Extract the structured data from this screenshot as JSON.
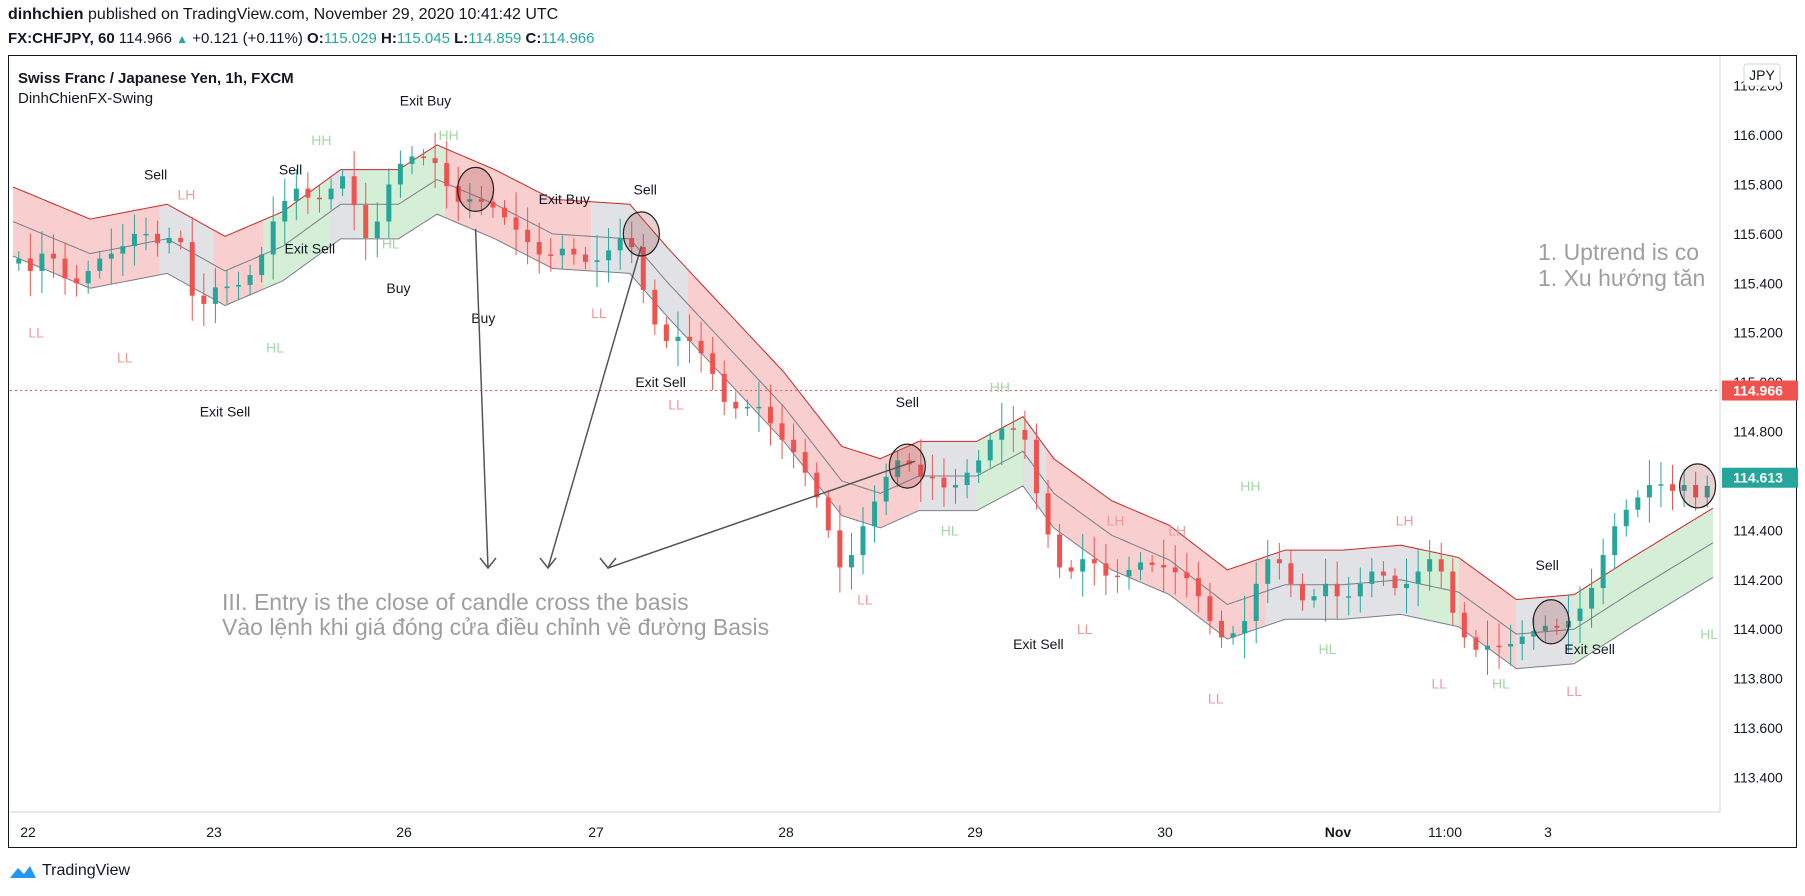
{
  "header": {
    "author": "dinhchien",
    "published": "published on TradingView.com, November 29, 2020 10:41:42 UTC",
    "symbol": "FX:CHFJPY, 60",
    "price": "114.966",
    "change": "+0.121 (+0.11%)",
    "o_label": "O:",
    "o": "115.029",
    "h_label": "H:",
    "h": "115.045",
    "l_label": "L:",
    "l": "114.859",
    "c_label": "C:",
    "c": "114.966"
  },
  "legend": {
    "title": "Swiss Franc / Japanese Yen, 1h, FXCM",
    "indicator": "DinhChienFX-Swing",
    "currency": "JPY"
  },
  "footer": {
    "brand": "TradingView"
  },
  "colors": {
    "up": "#26a69a",
    "down": "#ef5350",
    "band_red": "#f7c6c6",
    "band_green": "#cdeccf",
    "band_gray": "#dcdde2"
  },
  "chart_data": {
    "type": "candlestick",
    "x_ticks": [
      "22",
      "23",
      "26",
      "27",
      "28",
      "29",
      "30",
      "Nov",
      "11:00",
      "3"
    ],
    "y_ticks": [
      113.4,
      113.6,
      113.8,
      114.0,
      114.2,
      114.4,
      114.6,
      114.8,
      115.0,
      115.2,
      115.4,
      115.6,
      115.8,
      116.0,
      116.2
    ],
    "ylim": [
      113.26,
      116.32
    ],
    "last_price": 114.966,
    "band_price": 114.613,
    "close_path": [
      [
        0,
        115.48
      ],
      [
        3,
        115.5
      ],
      [
        6,
        115.45
      ],
      [
        9,
        115.52
      ],
      [
        12,
        115.5
      ],
      [
        15,
        115.42
      ],
      [
        18,
        115.4
      ],
      [
        21,
        115.45
      ],
      [
        24,
        115.5
      ],
      [
        27,
        115.52
      ],
      [
        30,
        115.55
      ],
      [
        33,
        115.6
      ],
      [
        36,
        115.6
      ],
      [
        40,
        115.55
      ],
      [
        43,
        115.6
      ],
      [
        46,
        115.55
      ],
      [
        49,
        115.25
      ],
      [
        52,
        115.35
      ],
      [
        55,
        115.4
      ],
      [
        58,
        115.38
      ],
      [
        61,
        115.4
      ],
      [
        64,
        115.45
      ],
      [
        67,
        115.55
      ],
      [
        70,
        115.7
      ],
      [
        73,
        115.75
      ],
      [
        76,
        115.8
      ],
      [
        79,
        115.72
      ],
      [
        82,
        115.75
      ],
      [
        85,
        115.8
      ],
      [
        88,
        115.85
      ],
      [
        91,
        115.65
      ],
      [
        94,
        115.55
      ],
      [
        97,
        115.7
      ],
      [
        100,
        115.85
      ],
      [
        103,
        115.9
      ],
      [
        106,
        115.92
      ],
      [
        109,
        115.9
      ],
      [
        112,
        115.88
      ],
      [
        115,
        115.75
      ],
      [
        118,
        115.72
      ],
      [
        121,
        115.75
      ],
      [
        124,
        115.72
      ],
      [
        127,
        115.7
      ],
      [
        130,
        115.65
      ],
      [
        133,
        115.6
      ],
      [
        136,
        115.55
      ],
      [
        139,
        115.5
      ],
      [
        142,
        115.52
      ],
      [
        145,
        115.55
      ],
      [
        148,
        115.5
      ],
      [
        151,
        115.48
      ],
      [
        154,
        115.5
      ],
      [
        157,
        115.55
      ],
      [
        160,
        115.6
      ],
      [
        163,
        115.52
      ],
      [
        166,
        115.3
      ],
      [
        169,
        115.2
      ],
      [
        172,
        115.15
      ],
      [
        175,
        115.2
      ],
      [
        178,
        115.15
      ],
      [
        181,
        115.1
      ],
      [
        184,
        115.0
      ],
      [
        187,
        114.88
      ],
      [
        190,
        114.9
      ],
      [
        193,
        114.9
      ],
      [
        196,
        114.9
      ],
      [
        199,
        114.8
      ],
      [
        202,
        114.75
      ],
      [
        205,
        114.7
      ],
      [
        208,
        114.6
      ],
      [
        211,
        114.5
      ],
      [
        214,
        114.35
      ],
      [
        217,
        114.2
      ],
      [
        220,
        114.35
      ],
      [
        223,
        114.45
      ],
      [
        226,
        114.55
      ],
      [
        229,
        114.65
      ],
      [
        232,
        114.7
      ],
      [
        235,
        114.65
      ],
      [
        238,
        114.6
      ],
      [
        241,
        114.62
      ],
      [
        244,
        114.55
      ],
      [
        247,
        114.6
      ],
      [
        250,
        114.65
      ],
      [
        253,
        114.7
      ],
      [
        256,
        114.8
      ],
      [
        259,
        114.82
      ],
      [
        262,
        114.8
      ],
      [
        265,
        114.75
      ],
      [
        268,
        114.45
      ],
      [
        271,
        114.35
      ],
      [
        274,
        114.2
      ],
      [
        277,
        114.25
      ],
      [
        280,
        114.3
      ],
      [
        283,
        114.25
      ],
      [
        286,
        114.2
      ],
      [
        289,
        114.22
      ],
      [
        292,
        114.25
      ],
      [
        295,
        114.28
      ],
      [
        298,
        114.25
      ],
      [
        301,
        114.25
      ],
      [
        304,
        114.22
      ],
      [
        307,
        114.2
      ],
      [
        310,
        114.1
      ],
      [
        313,
        114.0
      ],
      [
        316,
        113.95
      ],
      [
        319,
        114.0
      ],
      [
        322,
        114.05
      ],
      [
        325,
        114.25
      ],
      [
        328,
        114.3
      ],
      [
        331,
        114.25
      ],
      [
        334,
        114.15
      ],
      [
        337,
        114.1
      ],
      [
        340,
        114.15
      ],
      [
        343,
        114.2
      ],
      [
        346,
        114.1
      ],
      [
        349,
        114.15
      ],
      [
        352,
        114.2
      ],
      [
        355,
        114.25
      ],
      [
        358,
        114.2
      ],
      [
        361,
        114.15
      ],
      [
        364,
        114.2
      ],
      [
        367,
        114.25
      ],
      [
        370,
        114.3
      ],
      [
        373,
        114.2
      ],
      [
        376,
        114.0
      ],
      [
        379,
        113.95
      ],
      [
        382,
        113.9
      ],
      [
        385,
        113.95
      ],
      [
        388,
        113.92
      ],
      [
        391,
        113.95
      ],
      [
        394,
        113.98
      ],
      [
        397,
        114.0
      ],
      [
        400,
        114.02
      ],
      [
        403,
        114.0
      ],
      [
        406,
        114.05
      ],
      [
        409,
        114.1
      ],
      [
        412,
        114.2
      ],
      [
        415,
        114.35
      ],
      [
        418,
        114.45
      ],
      [
        421,
        114.5
      ],
      [
        424,
        114.55
      ],
      [
        427,
        114.6
      ],
      [
        430,
        114.58
      ],
      [
        433,
        114.55
      ],
      [
        436,
        114.6
      ],
      [
        439,
        114.5
      ],
      [
        441,
        114.58
      ]
    ],
    "basis_path": [
      [
        0,
        115.65
      ],
      [
        20,
        115.52
      ],
      [
        40,
        115.58
      ],
      [
        55,
        115.45
      ],
      [
        70,
        115.55
      ],
      [
        85,
        115.72
      ],
      [
        100,
        115.72
      ],
      [
        110,
        115.82
      ],
      [
        125,
        115.72
      ],
      [
        140,
        115.6
      ],
      [
        160,
        115.58
      ],
      [
        170,
        115.4
      ],
      [
        185,
        115.15
      ],
      [
        200,
        114.9
      ],
      [
        215,
        114.6
      ],
      [
        225,
        114.55
      ],
      [
        235,
        114.62
      ],
      [
        250,
        114.62
      ],
      [
        262,
        114.72
      ],
      [
        270,
        114.55
      ],
      [
        285,
        114.38
      ],
      [
        300,
        114.28
      ],
      [
        315,
        114.1
      ],
      [
        330,
        114.18
      ],
      [
        345,
        114.18
      ],
      [
        360,
        114.2
      ],
      [
        375,
        114.15
      ],
      [
        390,
        113.98
      ],
      [
        405,
        114.0
      ],
      [
        420,
        114.15
      ],
      [
        441,
        114.35
      ]
    ],
    "band_width": 0.14,
    "band_regimes": [
      [
        0,
        38,
        "red"
      ],
      [
        38,
        52,
        "gray"
      ],
      [
        52,
        65,
        "red"
      ],
      [
        65,
        82,
        "green"
      ],
      [
        82,
        90,
        "gray"
      ],
      [
        90,
        112,
        "green"
      ],
      [
        112,
        150,
        "red"
      ],
      [
        150,
        175,
        "gray"
      ],
      [
        175,
        235,
        "red"
      ],
      [
        235,
        250,
        "gray"
      ],
      [
        250,
        262,
        "green"
      ],
      [
        262,
        268,
        "gray"
      ],
      [
        268,
        325,
        "red"
      ],
      [
        325,
        365,
        "gray"
      ],
      [
        365,
        375,
        "green"
      ],
      [
        375,
        390,
        "red"
      ],
      [
        390,
        405,
        "gray"
      ],
      [
        405,
        441,
        "green"
      ]
    ],
    "annotations": [
      {
        "text": "Sell",
        "i": 37,
        "p": 115.82,
        "color": "#131722"
      },
      {
        "text": "LH",
        "i": 45,
        "p": 115.74,
        "color": "#ef9a9a"
      },
      {
        "text": "LL",
        "i": 6,
        "p": 115.18,
        "color": "#ef9a9a"
      },
      {
        "text": "LL",
        "i": 29,
        "p": 115.08,
        "color": "#ef9a9a"
      },
      {
        "text": "Exit Sell",
        "i": 55,
        "p": 114.86,
        "color": "#131722"
      },
      {
        "text": "Sell",
        "i": 72,
        "p": 115.84,
        "color": "#131722"
      },
      {
        "text": "HH",
        "i": 80,
        "p": 115.96,
        "color": "#a5d6a7"
      },
      {
        "text": "Exit Sell",
        "i": 77,
        "p": 115.52,
        "color": "#131722"
      },
      {
        "text": "HL",
        "i": 68,
        "p": 115.12,
        "color": "#a5d6a7"
      },
      {
        "text": "Exit Buy",
        "i": 107,
        "p": 116.12,
        "color": "#131722"
      },
      {
        "text": "HH",
        "i": 113,
        "p": 115.98,
        "color": "#a5d6a7"
      },
      {
        "text": "HL",
        "i": 98,
        "p": 115.54,
        "color": "#a5d6a7"
      },
      {
        "text": "Buy",
        "i": 100,
        "p": 115.36,
        "color": "#131722"
      },
      {
        "text": "Buy",
        "i": 122,
        "p": 115.24,
        "color": "#131722"
      },
      {
        "text": "Exit Buy",
        "i": 143,
        "p": 115.72,
        "color": "#131722"
      },
      {
        "text": "Sell",
        "i": 164,
        "p": 115.76,
        "color": "#131722"
      },
      {
        "text": "LL",
        "i": 152,
        "p": 115.26,
        "color": "#ef9a9a"
      },
      {
        "text": "Exit Sell",
        "i": 168,
        "p": 114.98,
        "color": "#131722"
      },
      {
        "text": "LL",
        "i": 172,
        "p": 114.89,
        "color": "#ef9a9a"
      },
      {
        "text": "Sell",
        "i": 232,
        "p": 114.9,
        "color": "#131722"
      },
      {
        "text": "HH",
        "i": 256,
        "p": 114.96,
        "color": "#a5d6a7"
      },
      {
        "text": "HL",
        "i": 243,
        "p": 114.38,
        "color": "#a5d6a7"
      },
      {
        "text": "LL",
        "i": 221,
        "p": 114.1,
        "color": "#ef9a9a"
      },
      {
        "text": "Exit Sell",
        "i": 266,
        "p": 113.92,
        "color": "#131722"
      },
      {
        "text": "LL",
        "i": 278,
        "p": 113.98,
        "color": "#ef9a9a"
      },
      {
        "text": "LH",
        "i": 286,
        "p": 114.42,
        "color": "#ef9a9a"
      },
      {
        "text": "LH",
        "i": 302,
        "p": 114.38,
        "color": "#ef9a9a"
      },
      {
        "text": "HH",
        "i": 321,
        "p": 114.56,
        "color": "#a5d6a7"
      },
      {
        "text": "LL",
        "i": 312,
        "p": 113.7,
        "color": "#ef9a9a"
      },
      {
        "text": "HL",
        "i": 341,
        "p": 113.9,
        "color": "#a5d6a7"
      },
      {
        "text": "LH",
        "i": 361,
        "p": 114.42,
        "color": "#ef9a9a"
      },
      {
        "text": "LL",
        "i": 370,
        "p": 113.76,
        "color": "#ef9a9a"
      },
      {
        "text": "HL",
        "i": 386,
        "p": 113.76,
        "color": "#a5d6a7"
      },
      {
        "text": "Sell",
        "i": 398,
        "p": 114.24,
        "color": "#131722"
      },
      {
        "text": "Exit Sell",
        "i": 409,
        "p": 113.9,
        "color": "#131722"
      },
      {
        "text": "LL",
        "i": 405,
        "p": 113.73,
        "color": "#ef9a9a"
      },
      {
        "text": "HL",
        "i": 440,
        "p": 113.96,
        "color": "#a5d6a7"
      }
    ],
    "note_uptrend": "1. Uptrend is co",
    "note_uptrend_vi": "1. Xu hướng tăn",
    "note_entry": "III. Entry is the close of candle cross the basis",
    "note_entry_vi": "Vào lệnh khi giá đóng cửa điều chỉnh về đường Basis"
  }
}
